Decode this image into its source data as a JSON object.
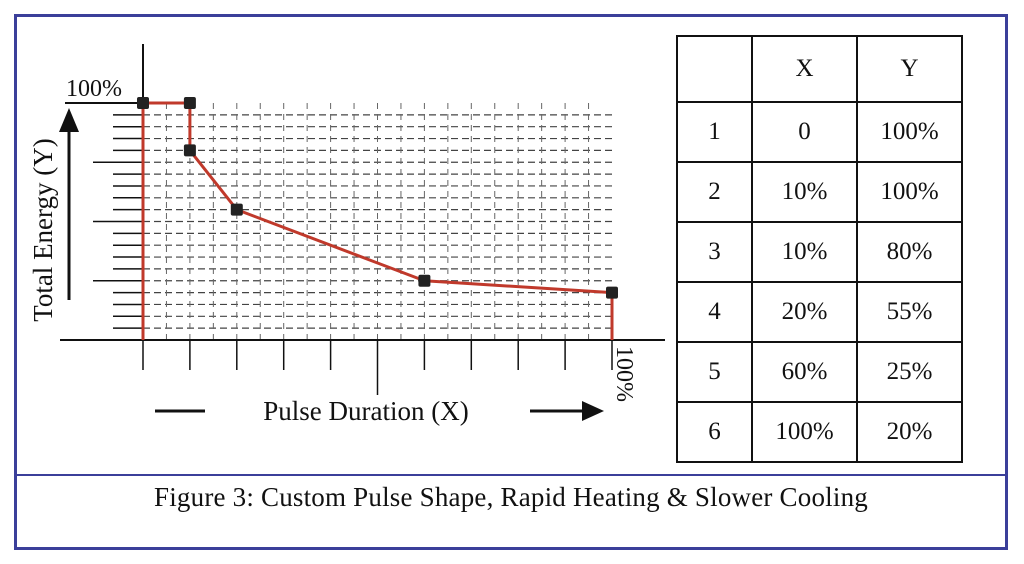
{
  "chart_data": {
    "type": "line",
    "title": "",
    "xlabel": "Pulse Duration (X)",
    "ylabel": "Total Energy (Y)",
    "x_max_label": "100%",
    "y_max_label": "100%",
    "x": [
      0,
      10,
      10,
      20,
      60,
      100
    ],
    "y": [
      100,
      100,
      80,
      55,
      25,
      20
    ],
    "xlim": [
      0,
      100
    ],
    "ylim": [
      0,
      100
    ],
    "grid": true,
    "line_color": "#c0392b",
    "marker_color": "#222222"
  },
  "table": {
    "headers": [
      "",
      "X",
      "Y"
    ],
    "rows": [
      [
        "1",
        "0",
        "100%"
      ],
      [
        "2",
        "10%",
        "100%"
      ],
      [
        "3",
        "10%",
        "80%"
      ],
      [
        "4",
        "20%",
        "55%"
      ],
      [
        "5",
        "60%",
        "25%"
      ],
      [
        "6",
        "100%",
        "20%"
      ]
    ]
  },
  "caption": "Figure 3: Custom Pulse Shape, Rapid Heating & Slower Cooling",
  "colors": {
    "border": "#3b3f9a",
    "line": "#c0392b"
  }
}
